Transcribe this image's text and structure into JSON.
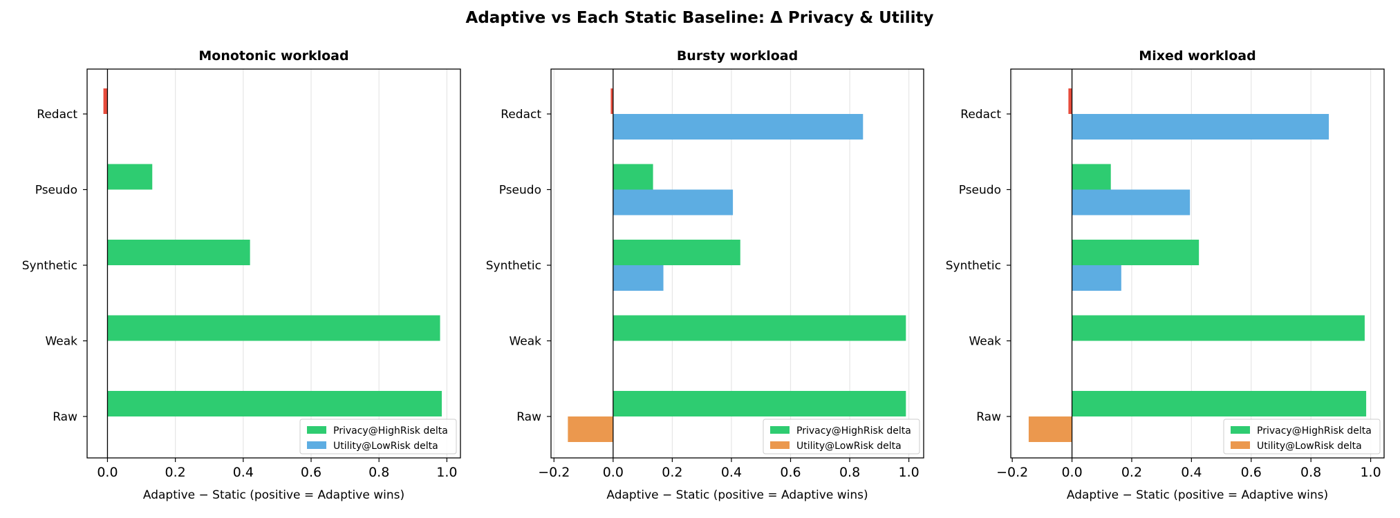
{
  "title": "Adaptive vs Each Static Baseline: Δ Privacy & Utility",
  "colors": {
    "privacy": "#2ecc71",
    "utility_positive": "#5dade2",
    "utility_negative": "#eb984e",
    "privacy_negative": "#e74c3c"
  },
  "chart_data": [
    {
      "type": "bar",
      "orientation": "horizontal",
      "title": "Monotonic workload",
      "xlabel": "Adaptive − Static  (positive = Adaptive wins)",
      "categories": [
        "Redact",
        "Pseudo",
        "Synthetic",
        "Weak",
        "Raw"
      ],
      "xlim": [
        -0.06,
        1.04
      ],
      "xticks": [
        0.0,
        0.2,
        0.4,
        0.6,
        0.8,
        1.0
      ],
      "xtick_labels": [
        "0.0",
        "0.2",
        "0.4",
        "0.6",
        "0.8",
        "1.0"
      ],
      "grid": true,
      "series": [
        {
          "name": "Privacy@HighRisk delta",
          "values": [
            -0.012,
            0.132,
            0.42,
            0.98,
            0.985
          ]
        },
        {
          "name": "Utility@LowRisk delta",
          "values": [
            0,
            0,
            0,
            0,
            0
          ]
        }
      ],
      "legend": {
        "entries": [
          {
            "label": "Privacy@HighRisk delta",
            "color": "#2ecc71"
          },
          {
            "label": "Utility@LowRisk delta",
            "color": "#5dade2"
          }
        ],
        "placement": "lower-right"
      }
    },
    {
      "type": "bar",
      "orientation": "horizontal",
      "title": "Bursty workload",
      "xlabel": "Adaptive − Static  (positive = Adaptive wins)",
      "categories": [
        "Redact",
        "Pseudo",
        "Synthetic",
        "Weak",
        "Raw"
      ],
      "xlim": [
        -0.21,
        1.05
      ],
      "xticks": [
        -0.2,
        0.0,
        0.2,
        0.4,
        0.6,
        0.8,
        1.0
      ],
      "xtick_labels": [
        "−0.2",
        "0.0",
        "0.2",
        "0.4",
        "0.6",
        "0.8",
        "1.0"
      ],
      "grid": true,
      "series": [
        {
          "name": "Privacy@HighRisk delta",
          "values": [
            -0.008,
            0.135,
            0.43,
            0.99,
            0.99
          ]
        },
        {
          "name": "Utility@LowRisk delta",
          "values": [
            0.845,
            0.405,
            0.17,
            0,
            -0.153
          ]
        }
      ],
      "legend": {
        "entries": [
          {
            "label": "Privacy@HighRisk delta",
            "color": "#2ecc71"
          },
          {
            "label": "Utility@LowRisk delta",
            "color": "#eb984e"
          }
        ],
        "placement": "lower-right"
      }
    },
    {
      "type": "bar",
      "orientation": "horizontal",
      "title": "Mixed workload",
      "xlabel": "Adaptive − Static  (positive = Adaptive wins)",
      "categories": [
        "Redact",
        "Pseudo",
        "Synthetic",
        "Weak",
        "Raw"
      ],
      "xlim": [
        -0.205,
        1.045
      ],
      "xticks": [
        -0.2,
        0.0,
        0.2,
        0.4,
        0.6,
        0.8,
        1.0
      ],
      "xtick_labels": [
        "−0.2",
        "0.0",
        "0.2",
        "0.4",
        "0.6",
        "0.8",
        "1.0"
      ],
      "grid": true,
      "series": [
        {
          "name": "Privacy@HighRisk delta",
          "values": [
            -0.012,
            0.13,
            0.425,
            0.98,
            0.985
          ]
        },
        {
          "name": "Utility@LowRisk delta",
          "values": [
            0.86,
            0.395,
            0.165,
            0,
            -0.145
          ]
        }
      ],
      "legend": {
        "entries": [
          {
            "label": "Privacy@HighRisk delta",
            "color": "#2ecc71"
          },
          {
            "label": "Utility@LowRisk delta",
            "color": "#eb984e"
          }
        ],
        "placement": "lower-right"
      }
    }
  ]
}
